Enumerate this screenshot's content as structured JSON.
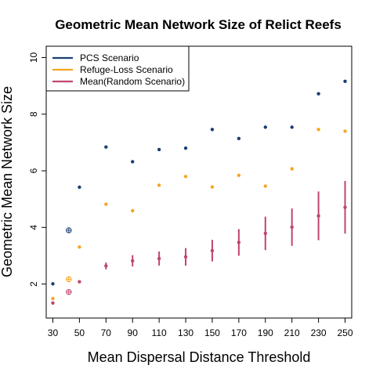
{
  "chart_data": {
    "type": "scatter",
    "title": "Geometric Mean Network Size of Relict Reefs",
    "xlabel": "Mean Dispersal Distance Threshold",
    "ylabel": "Geometric Mean Network Size",
    "x_ticks": [
      30,
      50,
      70,
      90,
      110,
      130,
      150,
      170,
      190,
      210,
      230,
      250
    ],
    "y_ticks": [
      2,
      4,
      6,
      8,
      10
    ],
    "xlim": [
      25,
      255
    ],
    "ylim": [
      0.8,
      10.4
    ],
    "legend_position": "top-left",
    "colors": {
      "pcs": "#1b3f73",
      "refuge": "#f5a623",
      "random": "#c0466a"
    },
    "series": [
      {
        "name": "PCS Scenario",
        "color_key": "pcs",
        "points": [
          {
            "x": 30,
            "y": 2.01
          },
          {
            "x": 50,
            "y": 5.42
          },
          {
            "x": 70,
            "y": 6.84
          },
          {
            "x": 90,
            "y": 6.32
          },
          {
            "x": 110,
            "y": 6.75
          },
          {
            "x": 130,
            "y": 6.8
          },
          {
            "x": 150,
            "y": 7.46
          },
          {
            "x": 170,
            "y": 7.14
          },
          {
            "x": 190,
            "y": 7.54
          },
          {
            "x": 210,
            "y": 7.54
          },
          {
            "x": 230,
            "y": 8.72
          },
          {
            "x": 250,
            "y": 9.16
          }
        ],
        "open_points": [
          {
            "x": 42,
            "y": 3.9
          }
        ]
      },
      {
        "name": "Refuge-Loss Scenario",
        "color_key": "refuge",
        "points": [
          {
            "x": 30,
            "y": 1.49
          },
          {
            "x": 50,
            "y": 3.31
          },
          {
            "x": 70,
            "y": 4.82
          },
          {
            "x": 90,
            "y": 4.59
          },
          {
            "x": 110,
            "y": 5.49
          },
          {
            "x": 130,
            "y": 5.8
          },
          {
            "x": 150,
            "y": 5.43
          },
          {
            "x": 170,
            "y": 5.84
          },
          {
            "x": 190,
            "y": 5.46
          },
          {
            "x": 210,
            "y": 6.07
          },
          {
            "x": 230,
            "y": 7.46
          },
          {
            "x": 250,
            "y": 7.4
          }
        ],
        "open_points": [
          {
            "x": 42,
            "y": 2.17
          }
        ]
      },
      {
        "name": "Mean(Random Scenario)",
        "color_key": "random",
        "points": [
          {
            "x": 30,
            "y": 1.33,
            "low": 1.33,
            "high": 1.33
          },
          {
            "x": 50,
            "y": 2.08,
            "low": 2.08,
            "high": 2.08
          },
          {
            "x": 70,
            "y": 2.64,
            "low": 2.52,
            "high": 2.76
          },
          {
            "x": 90,
            "y": 2.82,
            "low": 2.62,
            "high": 3.02
          },
          {
            "x": 110,
            "y": 2.9,
            "low": 2.65,
            "high": 3.15
          },
          {
            "x": 130,
            "y": 2.96,
            "low": 2.65,
            "high": 3.27
          },
          {
            "x": 150,
            "y": 3.18,
            "low": 2.8,
            "high": 3.56
          },
          {
            "x": 170,
            "y": 3.47,
            "low": 3.0,
            "high": 3.94
          },
          {
            "x": 190,
            "y": 3.79,
            "low": 3.2,
            "high": 4.38
          },
          {
            "x": 210,
            "y": 4.01,
            "low": 3.35,
            "high": 4.67
          },
          {
            "x": 230,
            "y": 4.41,
            "low": 3.55,
            "high": 5.27
          },
          {
            "x": 250,
            "y": 4.71,
            "low": 3.78,
            "high": 5.64
          }
        ],
        "open_points": [
          {
            "x": 42,
            "y": 1.72
          }
        ]
      }
    ]
  }
}
